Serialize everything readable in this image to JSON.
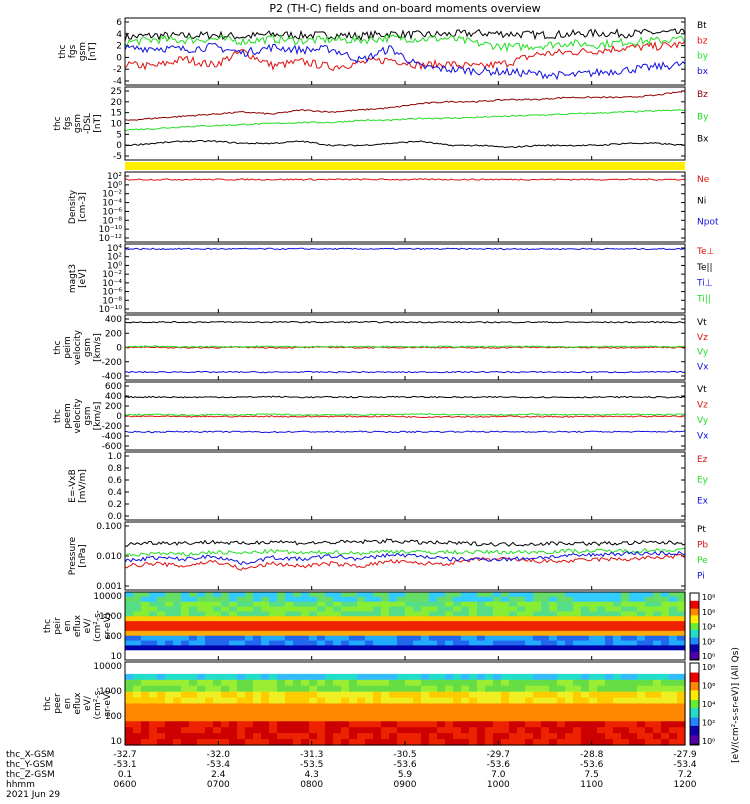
{
  "title": "P2 (TH-C) fields and on-board moments overview",
  "colors": {
    "black": "#000000",
    "red": "#e01010",
    "green": "#22dd22",
    "blue": "#1010dd",
    "darkred": "#8b0000",
    "yellow": "#ffee00"
  },
  "chart_data": [
    {
      "type": "line",
      "id": "fgs-dsl",
      "ylabel": [
        "thc",
        "fgs",
        "gsm",
        "[nT]"
      ],
      "yticks": [
        "6",
        "4",
        "2",
        "0",
        "-2",
        "-4"
      ],
      "ylim": [
        -5,
        6.5
      ],
      "series": [
        {
          "name": "Bt",
          "color": "black",
          "values": [
            3.2,
            3.5,
            3.4,
            3.6,
            3.3,
            3.7,
            3.5,
            3.6,
            3.4,
            3.8,
            3.6,
            3.7,
            3.9,
            3.8,
            3.6,
            3.7,
            3.9,
            3.8,
            4.0,
            3.9
          ]
        },
        {
          "name": "bz",
          "color": "red",
          "values": [
            -1.5,
            -1.8,
            -0.5,
            -1.6,
            0.8,
            -1.7,
            -1.0,
            -1.9,
            -1.2,
            -0.6,
            -1.6,
            -1.4,
            -1.9,
            -1.2,
            0.3,
            0.6,
            0.9,
            1.4,
            1.6,
            2.0
          ]
        },
        {
          "name": "by",
          "color": "green",
          "values": [
            2.3,
            2.8,
            2.7,
            2.9,
            2.5,
            2.9,
            2.6,
            2.8,
            2.7,
            3.1,
            2.9,
            3.0,
            2.1,
            1.5,
            1.7,
            2.2,
            1.9,
            2.4,
            2.6,
            2.9
          ]
        },
        {
          "name": "bx",
          "color": "blue",
          "values": [
            1.2,
            1.4,
            1.1,
            1.6,
            0.5,
            1.5,
            1.0,
            1.2,
            -0.8,
            1.3,
            -1.9,
            -2.3,
            -2.6,
            -2.8,
            -3.1,
            -3.4,
            -2.9,
            -2.4,
            -1.9,
            -1.4
          ]
        }
      ]
    },
    {
      "type": "line",
      "id": "fgs-gse",
      "ylabel": [
        "thc",
        "fgs",
        "gsm",
        "-DSL",
        "[nT]"
      ],
      "yticks": [
        "25",
        "20",
        "15",
        "10",
        "5",
        "0",
        "-5"
      ],
      "ylim": [
        -8,
        27
      ],
      "series": [
        {
          "name": "Bz",
          "color": "darkred",
          "values": [
            11,
            12,
            13,
            14,
            15,
            14,
            16,
            15,
            16,
            17,
            19,
            20,
            20,
            21,
            21,
            22,
            22,
            22,
            23,
            25
          ]
        },
        {
          "name": "By",
          "color": "green",
          "values": [
            6.5,
            7,
            8,
            8.5,
            9,
            9.5,
            10,
            10,
            11,
            11,
            12,
            12,
            12.5,
            13,
            13.5,
            14,
            14.5,
            15,
            15.5,
            16
          ]
        },
        {
          "name": "Bx",
          "color": "black",
          "values": [
            -1,
            0,
            1,
            1,
            0,
            0,
            1,
            -1,
            -1,
            0,
            1,
            -1,
            -1,
            -2,
            -1,
            -1,
            -1,
            0,
            0,
            -1
          ]
        }
      ]
    },
    {
      "type": "line",
      "id": "density",
      "ylabel": [
        "Density",
        "[cm-3]"
      ],
      "yticks": [
        "10²",
        "10⁰",
        "10⁻²",
        "10⁻⁴",
        "10⁻⁶",
        "10⁻⁸",
        "10⁻¹⁰",
        "10⁻¹²"
      ],
      "ylim": [
        -12,
        2
      ],
      "series": [
        {
          "name": "Ne",
          "color": "red",
          "values": [
            0.5,
            0.5,
            0.5,
            0.5,
            0.5,
            0.5,
            0.5,
            0.5,
            0.5,
            0.5,
            0.5,
            0.5,
            0.5,
            0.5,
            0.5,
            0.5,
            0.5,
            0.5,
            0.5,
            0.5
          ]
        },
        {
          "name": "Ni",
          "color": "black",
          "values": []
        },
        {
          "name": "Npot",
          "color": "blue",
          "values": []
        }
      ]
    },
    {
      "type": "line",
      "id": "temperature",
      "ylabel": [
        "magt3",
        "[eV]"
      ],
      "yticks": [
        "10⁴",
        "10²",
        "10⁰",
        "10⁻²",
        "10⁻⁴",
        "10⁻⁶",
        "10⁻⁸",
        "10⁻¹⁰"
      ],
      "ylim": [
        -10,
        4
      ],
      "series": [
        {
          "name": "Te⊥",
          "color": "red",
          "values": []
        },
        {
          "name": "Te||",
          "color": "black",
          "values": []
        },
        {
          "name": "Ti⊥",
          "color": "blue",
          "values": [
            3,
            3,
            3,
            3,
            3,
            3,
            3,
            3,
            3,
            3,
            3,
            3,
            3,
            3,
            3,
            3,
            3,
            3,
            3,
            3
          ]
        },
        {
          "name": "Ti||",
          "color": "green",
          "values": []
        }
      ]
    },
    {
      "type": "line",
      "id": "peim-vel",
      "ylabel": [
        "thc",
        "peim",
        "velocity",
        "gsm",
        "[km/s]"
      ],
      "yticks": [
        "400",
        "200",
        "0",
        "-200",
        "-400"
      ],
      "ylim": [
        -450,
        450
      ],
      "series": [
        {
          "name": "Vt",
          "color": "black",
          "values": [
            350,
            352,
            351,
            353,
            350,
            352,
            351,
            350,
            352,
            350,
            351,
            350,
            349,
            350,
            351,
            350,
            349,
            350,
            351,
            350
          ]
        },
        {
          "name": "Vz",
          "color": "red",
          "values": [
            0,
            5,
            -5,
            0,
            3,
            -2,
            0,
            5,
            -3,
            0,
            2,
            0,
            -5,
            0,
            3,
            0,
            -2,
            0,
            3,
            0
          ]
        },
        {
          "name": "Vy",
          "color": "green",
          "values": [
            10,
            15,
            8,
            12,
            10,
            14,
            9,
            12,
            11,
            15,
            13,
            12,
            10,
            14,
            12,
            10,
            11,
            13,
            12,
            10
          ]
        },
        {
          "name": "Vx",
          "color": "blue",
          "values": [
            -340,
            -342,
            -338,
            -341,
            -340,
            -343,
            -339,
            -341,
            -340,
            -342,
            -341,
            -340,
            -339,
            -341,
            -340,
            -342,
            -340,
            -341,
            -340,
            -339
          ]
        }
      ]
    },
    {
      "type": "line",
      "id": "peem-vel",
      "ylabel": [
        "thc",
        "peem",
        "velocity",
        "gsm",
        "[km/s]"
      ],
      "yticks": [
        "600",
        "400",
        "200",
        "0",
        "-200",
        "-400",
        "-600"
      ],
      "ylim": [
        -650,
        650
      ],
      "series": [
        {
          "name": "Vt",
          "color": "black",
          "values": [
            360,
            365,
            358,
            362,
            360,
            370,
            358,
            362,
            361,
            368,
            362,
            360,
            358,
            362,
            360,
            358,
            360,
            362,
            360,
            358
          ]
        },
        {
          "name": "Vz",
          "color": "red",
          "values": [
            -10,
            -5,
            -15,
            -8,
            -10,
            -5,
            -12,
            -8,
            -10,
            -5,
            -20,
            -10,
            -15,
            -8,
            -10,
            -12,
            -10,
            -8,
            -10,
            -5
          ]
        },
        {
          "name": "Vy",
          "color": "green",
          "values": [
            20,
            30,
            15,
            25,
            20,
            35,
            18,
            25,
            22,
            30,
            40,
            25,
            20,
            28,
            30,
            22,
            25,
            30,
            28,
            25
          ]
        },
        {
          "name": "Vx",
          "color": "blue",
          "values": [
            -300,
            -305,
            -298,
            -302,
            -300,
            -308,
            -299,
            -303,
            -300,
            -305,
            -302,
            -300,
            -298,
            -302,
            -300,
            -303,
            -300,
            -302,
            -300,
            -298
          ]
        }
      ]
    },
    {
      "type": "line",
      "id": "efield",
      "ylabel": [
        "E=-VxB",
        "[mV/m]"
      ],
      "yticks": [
        "1.0",
        "0.8",
        "0.6",
        "0.4",
        "0.2",
        "0.0"
      ],
      "ylim": [
        0,
        1
      ],
      "series": [
        {
          "name": "Ez",
          "color": "red",
          "values": []
        },
        {
          "name": "Ey",
          "color": "green",
          "values": []
        },
        {
          "name": "Ex",
          "color": "blue",
          "values": []
        }
      ]
    },
    {
      "type": "line",
      "id": "pressure",
      "ylabel": [
        "Pressure",
        "[nPa]"
      ],
      "yticks": [
        "0.100",
        "0.010",
        "0.001"
      ],
      "ylim": [
        -3,
        -1
      ],
      "log": true,
      "series": [
        {
          "name": "Pt",
          "color": "black",
          "values": [
            0.022,
            0.025,
            0.024,
            0.026,
            0.023,
            0.027,
            0.024,
            0.025,
            0.026,
            0.028,
            0.025,
            0.024,
            0.023,
            0.022,
            0.023,
            0.024,
            0.023,
            0.024,
            0.025,
            0.024
          ]
        },
        {
          "name": "Pb",
          "color": "red",
          "values": [
            0.005,
            0.006,
            0.005,
            0.007,
            0.004,
            0.006,
            0.005,
            0.006,
            0.005,
            0.007,
            0.006,
            0.006,
            0.008,
            0.008,
            0.007,
            0.007,
            0.008,
            0.008,
            0.009,
            0.01
          ]
        },
        {
          "name": "Pe",
          "color": "green",
          "values": [
            0.01,
            0.012,
            0.011,
            0.013,
            0.012,
            0.014,
            0.012,
            0.013,
            0.012,
            0.014,
            0.013,
            0.013,
            0.013,
            0.013,
            0.013,
            0.014,
            0.014,
            0.014,
            0.015,
            0.015
          ]
        },
        {
          "name": "Pi",
          "color": "blue",
          "values": [
            0.007,
            0.009,
            0.008,
            0.01,
            0.006,
            0.009,
            0.008,
            0.01,
            0.008,
            0.011,
            0.01,
            0.008,
            0.008,
            0.008,
            0.009,
            0.01,
            0.011,
            0.012,
            0.012,
            0.012
          ]
        }
      ]
    },
    {
      "type": "heatmap",
      "id": "peir",
      "ylabel": [
        "thc",
        "peir",
        "en",
        "eflux",
        "eV/",
        "(cm²-s-",
        "sr-eV)"
      ],
      "yticks": [
        "10000",
        "1000",
        "100",
        "10"
      ],
      "ylim": [
        1,
        4.3
      ]
    },
    {
      "type": "heatmap",
      "id": "peer",
      "ylabel": [
        "thc",
        "peer",
        "en",
        "eflux",
        "eV/",
        "(cm²-s-",
        "sr-eV)"
      ],
      "yticks": [
        "10000",
        "1000",
        "100",
        "10"
      ],
      "ylim": [
        0.6,
        4.3
      ]
    }
  ],
  "colorbar": {
    "label": "[eV/(cm²-s-sr-eV)] (All Qs)",
    "ticks_top": [
      "10⁸",
      "10⁶",
      "10⁴",
      "10²",
      "10⁰"
    ],
    "ticks_bottom": [
      "10⁸",
      "10⁶",
      "10⁴",
      "10²",
      "10⁰"
    ]
  },
  "xaxis": {
    "rows": [
      {
        "label": "thc_X-GSM",
        "values": [
          "-32.7",
          "-32.0",
          "-31.3",
          "-30.5",
          "-29.7",
          "-28.8",
          "-27.9"
        ]
      },
      {
        "label": "thc_Y-GSM",
        "values": [
          "-53.1",
          "-53.4",
          "-53.5",
          "-53.6",
          "-53.6",
          "-53.6",
          "-53.4"
        ]
      },
      {
        "label": "thc_Z-GSM",
        "values": [
          "0.1",
          "2.4",
          "4.3",
          "5.9",
          "7.0",
          "7.5",
          "7.2"
        ]
      },
      {
        "label": "hhmm",
        "values": [
          "0600",
          "0700",
          "0800",
          "0900",
          "1000",
          "1100",
          "1200"
        ]
      }
    ],
    "date": "2021 Jun 29"
  }
}
